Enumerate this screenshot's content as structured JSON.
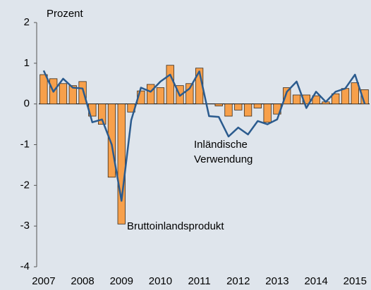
{
  "chart_data": {
    "type": "bar_line",
    "y_axis_label": "Prozent",
    "categories": [
      "2007",
      null,
      null,
      null,
      "2008",
      null,
      null,
      null,
      "2009",
      null,
      null,
      null,
      "2010",
      null,
      null,
      null,
      "2011",
      null,
      null,
      null,
      "2012",
      null,
      null,
      null,
      "2013",
      null,
      null,
      null,
      "2014",
      null,
      null,
      null,
      "2015",
      null
    ],
    "series": [
      {
        "name": "Bruttoinlandsprodukt",
        "type": "bar",
        "color": "#f7a04b",
        "values": [
          0.72,
          0.62,
          0.5,
          0.45,
          0.55,
          -0.3,
          -0.5,
          -1.8,
          -2.95,
          -0.2,
          0.32,
          0.48,
          0.4,
          0.95,
          0.45,
          0.5,
          0.88,
          0.0,
          -0.05,
          -0.3,
          -0.15,
          -0.3,
          -0.1,
          -0.45,
          -0.25,
          0.4,
          0.22,
          0.22,
          0.2,
          0.05,
          0.25,
          0.38,
          0.52,
          0.35
        ]
      },
      {
        "name": [
          "Inländische",
          "Verwendung"
        ],
        "type": "line",
        "color": "#2b5b8e",
        "values": [
          0.82,
          0.3,
          0.62,
          0.4,
          0.38,
          -0.45,
          -0.38,
          -1.0,
          -2.38,
          -0.4,
          0.4,
          0.3,
          0.55,
          0.72,
          0.2,
          0.38,
          0.8,
          -0.3,
          -0.32,
          -0.8,
          -0.58,
          -0.75,
          -0.42,
          -0.5,
          -0.38,
          0.3,
          0.55,
          -0.1,
          0.3,
          0.05,
          0.3,
          0.38,
          0.72,
          0.0
        ]
      }
    ],
    "ylim": [
      -4,
      2
    ],
    "yticks": [
      -4,
      -3,
      -2,
      -1,
      0,
      1,
      2
    ],
    "grid": false
  }
}
